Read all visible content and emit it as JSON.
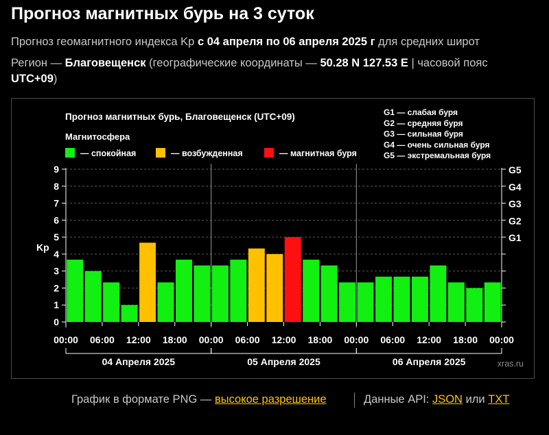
{
  "header": {
    "title": "Прогноз магнитных бурь на 3 суток",
    "line1_pre": "Прогноз геомагнитного индекса Kp",
    "line1_bold": "с 04 апреля по 06 апреля 2025 г",
    "line1_post": "для средних широт",
    "line2_pre": "Регион —",
    "region": "Благовещенск",
    "line2_mid": "(географические координаты —",
    "coords": "50.28 N 127.53 E",
    "line2_post": "| часовой пояс",
    "timezone": "UTC+09",
    "line3_post": ")"
  },
  "colors": {
    "calm": "#12f012",
    "excited": "#ffc000",
    "storm": "#ff1010"
  },
  "chart_data": {
    "type": "bar",
    "title": "Прогноз магнитных бурь, Благовещенск (UTC+09)",
    "legend_title": "Магнитосфера",
    "legend": [
      {
        "label": "— спокойная",
        "color": "#12f012"
      },
      {
        "label": "— возбужденная",
        "color": "#ffc000"
      },
      {
        "label": "— магнитная буря",
        "color": "#ff1010"
      }
    ],
    "g_scale": [
      "G1 — слабая буря",
      "G2 — средняя буря",
      "G3 — сильная буря",
      "G4 — очень сильная буря",
      "G5 — экстремальная буря"
    ],
    "ylabel": "Kp",
    "ylim": [
      0,
      9
    ],
    "yticks": [
      "0",
      "1",
      "2",
      "3",
      "4",
      "5",
      "6",
      "7",
      "8",
      "9"
    ],
    "right_ticks": [
      {
        "kp": 5,
        "label": "G1"
      },
      {
        "kp": 6,
        "label": "G2"
      },
      {
        "kp": 7,
        "label": "G3"
      },
      {
        "kp": 8,
        "label": "G4"
      },
      {
        "kp": 9,
        "label": "G5"
      }
    ],
    "xticks": [
      "00:00",
      "06:00",
      "12:00",
      "18:00",
      "00:00",
      "06:00",
      "12:00",
      "18:00",
      "00:00",
      "06:00",
      "12:00",
      "18:00",
      "00:00"
    ],
    "days": [
      "04 Апреля 2025",
      "05 Апреля 2025",
      "06 Апреля 2025"
    ],
    "values": [
      3.67,
      3.0,
      2.33,
      1.0,
      4.67,
      2.33,
      3.67,
      3.33,
      3.33,
      3.67,
      4.33,
      4.0,
      5.0,
      3.67,
      3.33,
      2.33,
      2.33,
      2.67,
      2.67,
      2.67,
      3.33,
      2.33,
      2.0,
      2.33
    ],
    "levels": [
      "calm",
      "calm",
      "calm",
      "calm",
      "excited",
      "calm",
      "calm",
      "calm",
      "calm",
      "calm",
      "excited",
      "excited",
      "storm",
      "calm",
      "calm",
      "calm",
      "calm",
      "calm",
      "calm",
      "calm",
      "calm",
      "calm",
      "calm",
      "calm"
    ],
    "watermark": "xras.ru"
  },
  "footer": {
    "png_text": "График в формате PNG —",
    "png_link": "высокое разрешение",
    "api_text": "Данные API:",
    "json_link": "JSON",
    "or_text": "или",
    "txt_link": "TXT"
  }
}
